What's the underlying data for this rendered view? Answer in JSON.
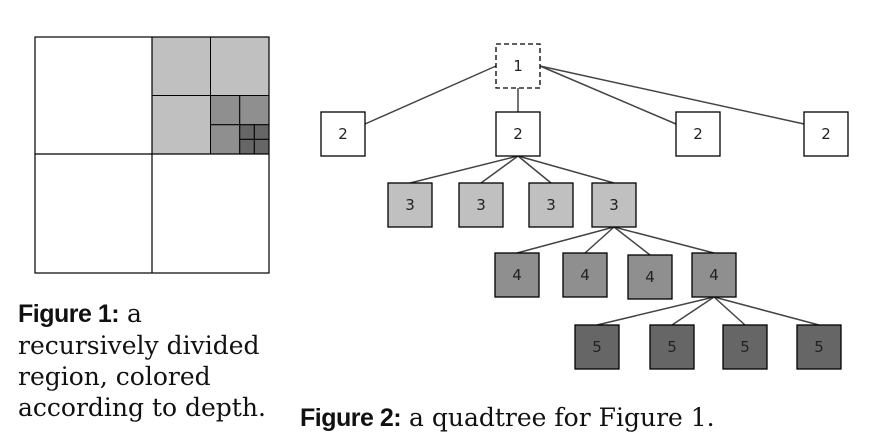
{
  "figure1": {
    "caption_label": "Figure 1:",
    "caption_text": " a recursively divided region, colored according to depth."
  },
  "figure2": {
    "caption_label": "Figure 2:",
    "caption_text": " a quadtree for Figure 1."
  },
  "colors": {
    "depth1": "#ffffff",
    "depth2": "#ffffff",
    "depth3": "#c0c0c0",
    "depth4": "#8f8f8f",
    "depth5": "#666666",
    "stroke": "#000000",
    "edge": "#444444"
  },
  "tree": {
    "nodes": [
      {
        "id": "n1",
        "label": "1",
        "depth": 1,
        "dashed": true
      },
      {
        "id": "n2a",
        "label": "2",
        "depth": 2
      },
      {
        "id": "n2b",
        "label": "2",
        "depth": 2
      },
      {
        "id": "n2c",
        "label": "2",
        "depth": 2
      },
      {
        "id": "n2d",
        "label": "2",
        "depth": 2
      },
      {
        "id": "n3a",
        "label": "3",
        "depth": 3
      },
      {
        "id": "n3b",
        "label": "3",
        "depth": 3
      },
      {
        "id": "n3c",
        "label": "3",
        "depth": 3
      },
      {
        "id": "n3d",
        "label": "3",
        "depth": 3
      },
      {
        "id": "n4a",
        "label": "4",
        "depth": 4
      },
      {
        "id": "n4b",
        "label": "4",
        "depth": 4
      },
      {
        "id": "n4c",
        "label": "4",
        "depth": 4
      },
      {
        "id": "n4d",
        "label": "4",
        "depth": 4
      },
      {
        "id": "n5a",
        "label": "5",
        "depth": 5
      },
      {
        "id": "n5b",
        "label": "5",
        "depth": 5
      },
      {
        "id": "n5c",
        "label": "5",
        "depth": 5
      },
      {
        "id": "n5d",
        "label": "5",
        "depth": 5
      }
    ],
    "edges": [
      [
        "n1",
        "n2a"
      ],
      [
        "n1",
        "n2b"
      ],
      [
        "n1",
        "n2c"
      ],
      [
        "n1",
        "n2d"
      ],
      [
        "n2b",
        "n3a"
      ],
      [
        "n2b",
        "n3b"
      ],
      [
        "n2b",
        "n3c"
      ],
      [
        "n2b",
        "n3d"
      ],
      [
        "n3d",
        "n4a"
      ],
      [
        "n3d",
        "n4b"
      ],
      [
        "n3d",
        "n4c"
      ],
      [
        "n3d",
        "n4d"
      ],
      [
        "n4d",
        "n5a"
      ],
      [
        "n4d",
        "n5b"
      ],
      [
        "n4d",
        "n5c"
      ],
      [
        "n4d",
        "n5d"
      ]
    ]
  }
}
